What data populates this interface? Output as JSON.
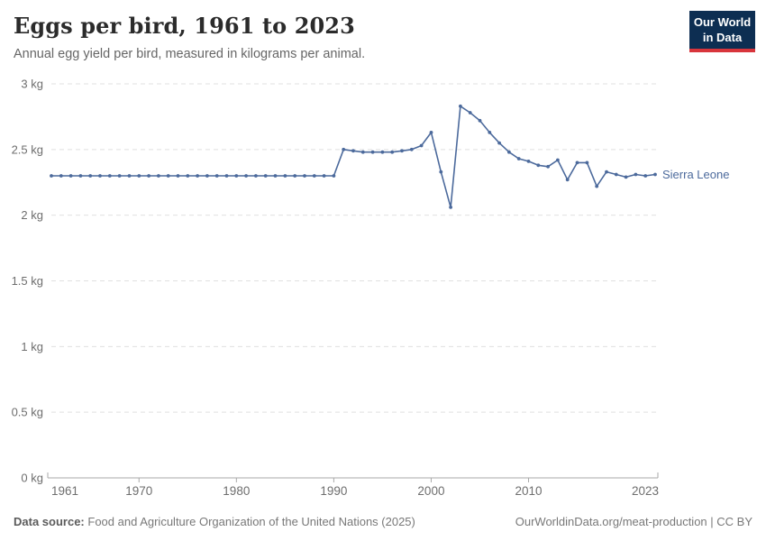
{
  "header": {
    "title": "Eggs per bird, 1961 to 2023",
    "subtitle": "Annual egg yield per bird, measured in kilograms per animal."
  },
  "logo": {
    "line1": "Our World",
    "line2": "in Data"
  },
  "chart_data": {
    "type": "line",
    "title": "Eggs per bird, 1961 to 2023",
    "unit": "kg",
    "xlim": [
      1961,
      2023
    ],
    "ylim": [
      0,
      3
    ],
    "grid": "horizontal-dashed",
    "legend_position": "end-of-line",
    "x_ticks": [
      {
        "value": 1961,
        "label": "1961"
      },
      {
        "value": 1970,
        "label": "1970"
      },
      {
        "value": 1980,
        "label": "1980"
      },
      {
        "value": 1990,
        "label": "1990"
      },
      {
        "value": 2000,
        "label": "2000"
      },
      {
        "value": 2010,
        "label": "2010"
      },
      {
        "value": 2023,
        "label": "2023"
      }
    ],
    "y_ticks": [
      {
        "value": 0,
        "label": "0 kg"
      },
      {
        "value": 0.5,
        "label": "0.5 kg"
      },
      {
        "value": 1,
        "label": "1 kg"
      },
      {
        "value": 1.5,
        "label": "1.5 kg"
      },
      {
        "value": 2,
        "label": "2 kg"
      },
      {
        "value": 2.5,
        "label": "2.5 kg"
      },
      {
        "value": 3,
        "label": "3 kg"
      }
    ],
    "series": [
      {
        "name": "Sierra Leone",
        "color": "#4C6A9C",
        "x": [
          1961,
          1962,
          1963,
          1964,
          1965,
          1966,
          1967,
          1968,
          1969,
          1970,
          1971,
          1972,
          1973,
          1974,
          1975,
          1976,
          1977,
          1978,
          1979,
          1980,
          1981,
          1982,
          1983,
          1984,
          1985,
          1986,
          1987,
          1988,
          1989,
          1990,
          1991,
          1992,
          1993,
          1994,
          1995,
          1996,
          1997,
          1998,
          1999,
          2000,
          2001,
          2002,
          2003,
          2004,
          2005,
          2006,
          2007,
          2008,
          2009,
          2010,
          2011,
          2012,
          2013,
          2014,
          2015,
          2016,
          2017,
          2018,
          2019,
          2020,
          2021,
          2022,
          2023
        ],
        "values": [
          2.3,
          2.3,
          2.3,
          2.3,
          2.3,
          2.3,
          2.3,
          2.3,
          2.3,
          2.3,
          2.3,
          2.3,
          2.3,
          2.3,
          2.3,
          2.3,
          2.3,
          2.3,
          2.3,
          2.3,
          2.3,
          2.3,
          2.3,
          2.3,
          2.3,
          2.3,
          2.3,
          2.3,
          2.3,
          2.3,
          2.5,
          2.49,
          2.48,
          2.48,
          2.48,
          2.48,
          2.49,
          2.5,
          2.53,
          2.63,
          2.33,
          2.06,
          2.83,
          2.78,
          2.72,
          2.63,
          2.55,
          2.48,
          2.43,
          2.41,
          2.38,
          2.37,
          2.42,
          2.27,
          2.4,
          2.4,
          2.22,
          2.33,
          2.31,
          2.29,
          2.31,
          2.3,
          2.31
        ]
      }
    ]
  },
  "footer": {
    "source_label": "Data source:",
    "source_text": "Food and Agriculture Organization of the United Nations (2025)",
    "credit_url": "OurWorldinData.org/meat-production",
    "credit_separator": " | ",
    "credit_license": "CC BY"
  }
}
